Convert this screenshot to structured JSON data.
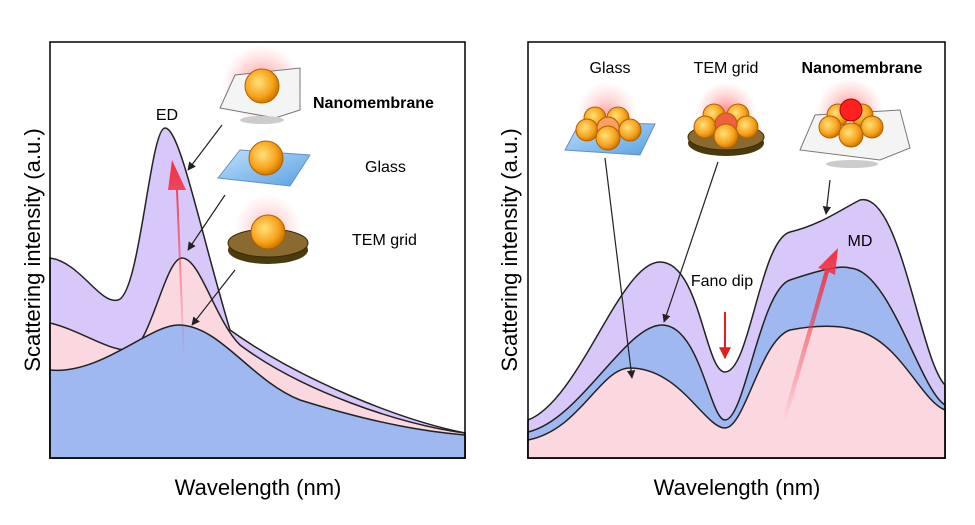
{
  "left_panel": {
    "y_label": "Scattering intensity (a.u.)",
    "x_label": "Wavelength (nm)",
    "peak_label": "ED",
    "substrates": [
      "Nanomembrane",
      "Glass",
      "TEM grid"
    ]
  },
  "right_panel": {
    "y_label": "Scattering intensity (a.u.)",
    "x_label": "Wavelength (nm)",
    "substrates": [
      "Glass",
      "TEM grid",
      "Nanomembrane"
    ],
    "dip_label": "Fano dip",
    "peak_label": "MD"
  }
}
